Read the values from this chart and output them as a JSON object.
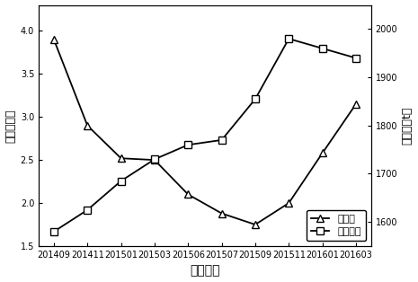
{
  "x_labels": [
    "201409",
    "201411",
    "201501",
    "201503",
    "201506",
    "201507",
    "201509",
    "201511",
    "201601",
    "201603"
  ],
  "diversity": [
    3.9,
    2.9,
    2.52,
    2.5,
    2.1,
    1.88,
    1.75,
    2.0,
    2.58,
    3.15
  ],
  "oil_values": [
    1580,
    1625,
    1685,
    1730,
    1760,
    1770,
    1855,
    1980,
    1960,
    1940
  ],
  "ylabel_left": "多样性指数",
  "ylabel_right": "日油量（t）",
  "xlabel": "检测时间",
  "legend_diversity": "多样性",
  "legend_oil": "日油水平",
  "ylim_left": [
    1.5,
    4.3
  ],
  "ylim_right": [
    1550,
    2050
  ],
  "yticks_left": [
    1.5,
    2.0,
    2.5,
    3.0,
    3.5,
    4.0
  ],
  "yticks_right": [
    1600,
    1700,
    1800,
    1900,
    2000
  ],
  "background": "#ffffff",
  "line_color": "#000000"
}
